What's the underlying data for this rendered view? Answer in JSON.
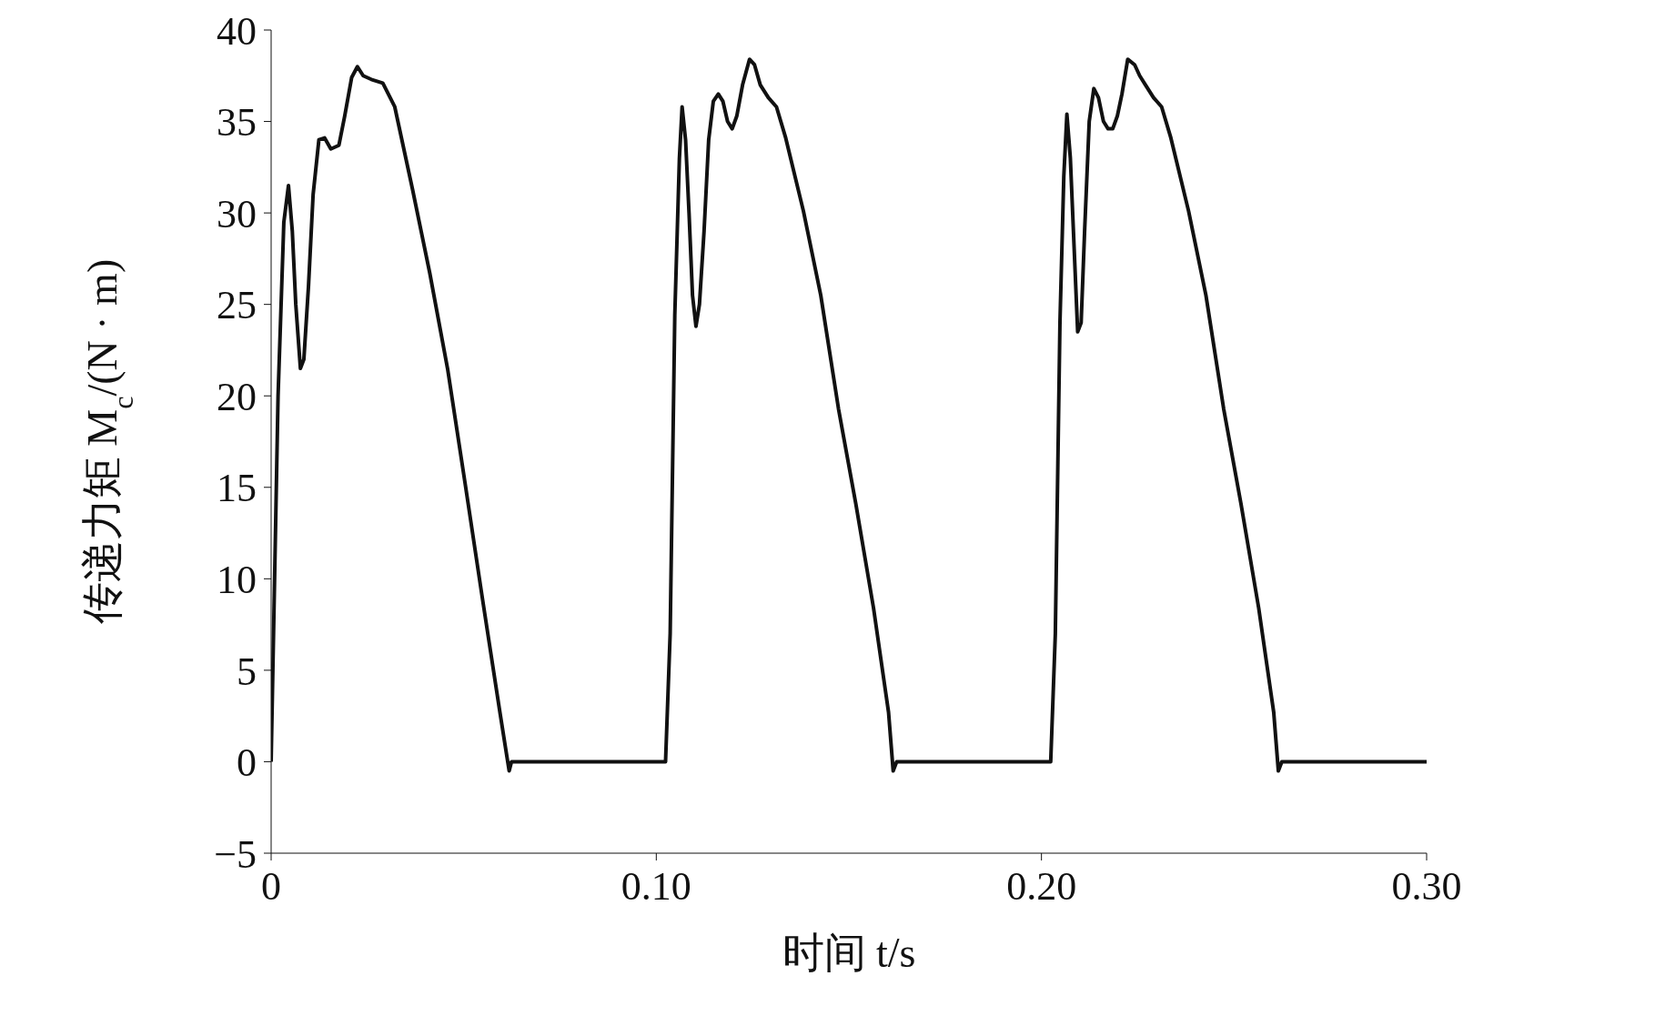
{
  "chart_data": {
    "type": "line",
    "xlabel": "时间 t/s",
    "ylabel": "传递力矩 M$_{c}$/(N · m)",
    "xlim": [
      0,
      0.3
    ],
    "xticks": [
      0,
      {
        "value": 0.1,
        "label": "0.10"
      },
      {
        "value": 0.2,
        "label": "0.20"
      },
      {
        "value": 0.3,
        "label": "0.30"
      }
    ],
    "ylim": [
      -5,
      40
    ],
    "yticks": [
      {
        "value": -5,
        "label": "−5"
      },
      0,
      5,
      10,
      15,
      20,
      25,
      30,
      35,
      40
    ],
    "grid": false,
    "legend": false,
    "marker": "none",
    "line_style": "solid",
    "series": [
      {
        "color": "#111111",
        "x": [
          0,
          0.0018,
          0.0033,
          0.0045,
          0.0055,
          0.0064,
          0.0076,
          0.0085,
          0.0097,
          0.0109,
          0.0124,
          0.0139,
          0.0155,
          0.0176,
          0.0191,
          0.0209,
          0.0224,
          0.0239,
          0.026,
          0.029,
          0.0321,
          0.0367,
          0.0412,
          0.0458,
          0.0503,
          0.0548,
          0.0594,
          0.0618,
          0.0624,
          0.1024,
          0.1036,
          0.1048,
          0.106,
          0.1067,
          0.1076,
          0.1085,
          0.1094,
          0.1103,
          0.1112,
          0.1124,
          0.1136,
          0.1148,
          0.1161,
          0.1173,
          0.1185,
          0.1197,
          0.1209,
          0.1224,
          0.1242,
          0.1255,
          0.127,
          0.1291,
          0.1312,
          0.1336,
          0.1382,
          0.1427,
          0.1473,
          0.1518,
          0.1564,
          0.1603,
          0.1615,
          0.1624,
          0.2024,
          0.2036,
          0.2048,
          0.2058,
          0.2066,
          0.2075,
          0.2085,
          0.2094,
          0.2103,
          0.2112,
          0.2124,
          0.2136,
          0.2148,
          0.2161,
          0.2173,
          0.2185,
          0.2197,
          0.2209,
          0.2224,
          0.2242,
          0.2255,
          0.227,
          0.2291,
          0.2312,
          0.2336,
          0.2382,
          0.2427,
          0.2473,
          0.2518,
          0.2564,
          0.2603,
          0.2615,
          0.2624,
          0.3
        ],
        "values": [
          0,
          20,
          29.5,
          31.5,
          29,
          25,
          21.5,
          22,
          26,
          31,
          34,
          34.1,
          33.5,
          33.7,
          35.3,
          37.4,
          38,
          37.5,
          37.3,
          37.1,
          35.8,
          31.3,
          26.7,
          21.5,
          15.3,
          9,
          2.7,
          -0.5,
          0,
          0,
          7,
          24.4,
          33,
          35.8,
          34,
          30,
          25.5,
          23.8,
          25,
          29,
          34,
          36.1,
          36.5,
          36.1,
          35,
          34.6,
          35.3,
          37,
          38.4,
          38.1,
          37,
          36.3,
          35.8,
          34.1,
          30.1,
          25.5,
          19.3,
          14.1,
          8.4,
          2.7,
          -0.5,
          0,
          0,
          7,
          24,
          32,
          35.4,
          33,
          28,
          23.5,
          24,
          29,
          35,
          36.8,
          36.3,
          35,
          34.6,
          34.6,
          35.3,
          36.5,
          38.4,
          38.1,
          37.5,
          37,
          36.3,
          35.8,
          34.1,
          30.1,
          25.5,
          19.3,
          14.1,
          8.4,
          2.7,
          -0.5,
          0,
          0
        ]
      }
    ]
  }
}
